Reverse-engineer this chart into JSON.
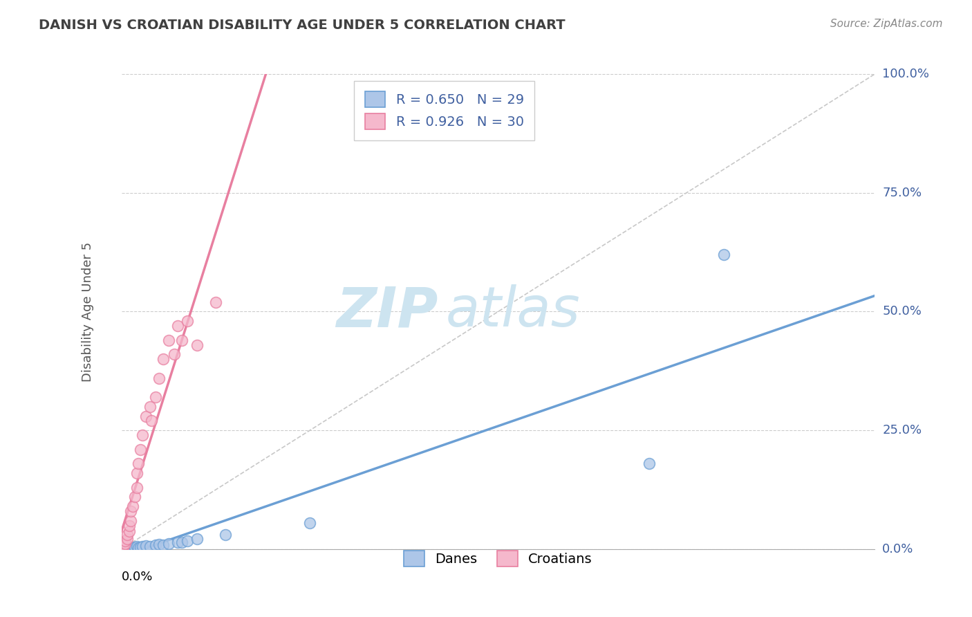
{
  "title": "DANISH VS CROATIAN DISABILITY AGE UNDER 5 CORRELATION CHART",
  "source": "Source: ZipAtlas.com",
  "danes_R": 0.65,
  "danes_N": 29,
  "croatians_R": 0.926,
  "croatians_N": 30,
  "blue_color": "#adc6e8",
  "blue_edge_color": "#6b9fd4",
  "pink_color": "#f5b8cc",
  "pink_edge_color": "#e87fa0",
  "blue_line_color": "#6b9fd4",
  "pink_line_color": "#e87fa0",
  "ref_line_color": "#c8c8c8",
  "legend_text_color": "#4060a0",
  "title_color": "#404040",
  "grid_color": "#cccccc",
  "watermark_color": "#cde4f0",
  "xmin": 0.0,
  "xmax": 0.4,
  "ymin": 0.0,
  "ymax": 1.0,
  "ylabel_ticks": [
    0.0,
    25.0,
    50.0,
    75.0,
    100.0
  ],
  "danes_x": [
    0.001,
    0.002,
    0.002,
    0.003,
    0.003,
    0.004,
    0.005,
    0.005,
    0.006,
    0.007,
    0.007,
    0.008,
    0.009,
    0.01,
    0.011,
    0.013,
    0.015,
    0.018,
    0.02,
    0.022,
    0.025,
    0.03,
    0.032,
    0.035,
    0.04,
    0.055,
    0.1,
    0.28,
    0.32
  ],
  "danes_y": [
    0.001,
    0.002,
    0.001,
    0.002,
    0.003,
    0.003,
    0.002,
    0.004,
    0.003,
    0.003,
    0.004,
    0.005,
    0.003,
    0.004,
    0.005,
    0.007,
    0.006,
    0.008,
    0.01,
    0.009,
    0.012,
    0.015,
    0.014,
    0.018,
    0.022,
    0.03,
    0.055,
    0.18,
    0.62
  ],
  "croatians_x": [
    0.001,
    0.001,
    0.002,
    0.002,
    0.003,
    0.003,
    0.004,
    0.004,
    0.005,
    0.005,
    0.006,
    0.007,
    0.008,
    0.008,
    0.009,
    0.01,
    0.011,
    0.013,
    0.015,
    0.016,
    0.018,
    0.02,
    0.022,
    0.025,
    0.028,
    0.03,
    0.032,
    0.035,
    0.04,
    0.05
  ],
  "croatians_y": [
    0.004,
    0.008,
    0.012,
    0.018,
    0.022,
    0.03,
    0.038,
    0.05,
    0.06,
    0.08,
    0.09,
    0.11,
    0.13,
    0.16,
    0.18,
    0.21,
    0.24,
    0.28,
    0.3,
    0.27,
    0.32,
    0.36,
    0.4,
    0.44,
    0.41,
    0.47,
    0.44,
    0.48,
    0.43,
    0.52
  ]
}
